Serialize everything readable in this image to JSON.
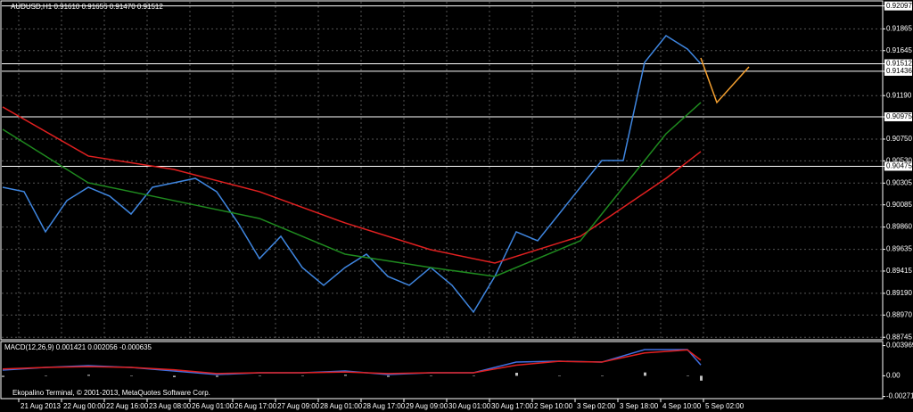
{
  "chart_data": [
    {
      "type": "line",
      "title": "AUDUSD,H1  0.91610 0.91656 0.91470 0.91512",
      "xlim": [
        0,
        329
      ],
      "xticks": [
        {
          "value": 6,
          "label": "21 Aug 2013"
        },
        {
          "value": 22,
          "label": "22 Aug 00:00"
        },
        {
          "value": 38,
          "label": "22 Aug 16:00"
        },
        {
          "value": 54,
          "label": "23 Aug 08:00"
        },
        {
          "value": 70,
          "label": "26 Aug 01:00"
        },
        {
          "value": 86,
          "label": "26 Aug 17:00"
        },
        {
          "value": 102,
          "label": "27 Aug 09:00"
        },
        {
          "value": 118,
          "label": "28 Aug 01:00"
        },
        {
          "value": 134,
          "label": "28 Aug 17:00"
        },
        {
          "value": 150,
          "label": "29 Aug 09:00"
        },
        {
          "value": 166,
          "label": "30 Aug 01:00"
        },
        {
          "value": 182,
          "label": "30 Aug 17:00"
        },
        {
          "value": 198,
          "label": "2 Sep 10:00"
        },
        {
          "value": 214,
          "label": "3 Sep 02:00"
        },
        {
          "value": 230,
          "label": "3 Sep 18:00"
        },
        {
          "value": 246,
          "label": "4 Sep 10:00"
        },
        {
          "value": 262,
          "label": "5 Sep 02:00"
        }
      ],
      "ylim": [
        0.8872,
        0.9213
      ],
      "yticks": [
        0.92097,
        0.91865,
        0.91645,
        0.91512,
        0.91436,
        {
          "value": 0.9119,
          "label": "0.91190"
        },
        0.90975,
        {
          "value": 0.9075,
          "label": "0.90750"
        },
        {
          "value": 0.9053,
          "label": "0.90530"
        },
        0.90475,
        0.90305,
        0.90085,
        {
          "value": 0.8986,
          "label": "0.89860"
        },
        0.89635,
        0.89415,
        {
          "value": 0.8919,
          "label": "0.89190"
        },
        {
          "value": 0.8897,
          "label": "0.88970"
        },
        0.88745
      ],
      "hlines": [
        0.92097,
        0.91512,
        0.91436,
        0.90975,
        0.90475
      ],
      "grid": true,
      "series": [
        {
          "color": "#3f86e0",
          "x": [
            0,
            8,
            16,
            24,
            32,
            40,
            48,
            56,
            64,
            72,
            80,
            88,
            96,
            104,
            112,
            120,
            128,
            136,
            144,
            152,
            160,
            168,
            176,
            184,
            192,
            200,
            208,
            216,
            224,
            232,
            240,
            248,
            256,
            261
          ],
          "values": [
            0.90263,
            0.90218,
            0.89812,
            0.90128,
            0.90263,
            0.90173,
            0.89992,
            0.90263,
            0.90308,
            0.90353,
            0.90218,
            0.89902,
            0.89541,
            0.89767,
            0.89451,
            0.89271,
            0.89451,
            0.89586,
            0.89361,
            0.89271,
            0.89451,
            0.89271,
            0.89,
            0.89361,
            0.89812,
            0.89722,
            0.89992,
            0.90263,
            0.90533,
            0.90533,
            0.91526,
            0.91796,
            0.91661,
            0.91512
          ]
        },
        {
          "color": "#e02020",
          "x": [
            0,
            32,
            64,
            96,
            128,
            160,
            184,
            216,
            248,
            261
          ],
          "values": [
            0.91075,
            0.90579,
            0.90443,
            0.90218,
            0.89902,
            0.89631,
            0.89496,
            0.89767,
            0.90353,
            0.90624
          ]
        },
        {
          "color": "#1f8a1f",
          "x": [
            0,
            32,
            64,
            96,
            128,
            160,
            184,
            216,
            248,
            261
          ],
          "values": [
            0.90849,
            0.90308,
            0.90128,
            0.89947,
            0.89586,
            0.89451,
            0.89361,
            0.89722,
            0.90804,
            0.9112
          ]
        },
        {
          "color": "#f5a030",
          "x": [
            261,
            267,
            279
          ],
          "values": [
            0.91571,
            0.9112,
            0.91481
          ]
        }
      ]
    },
    {
      "type": "line",
      "title": "MACD(12,26,9) 0.001421 0.002056 -0.000635",
      "ylim": [
        -0.003,
        0.0045
      ],
      "yticks": [
        0.003969,
        {
          "value": 0,
          "label": "0.00"
        },
        -0.002718
      ],
      "series": [
        {
          "type": "bar",
          "color": "#c0c0c0",
          "x": [
            0,
            16,
            32,
            48,
            64,
            80,
            96,
            112,
            128,
            144,
            160,
            176,
            192,
            208,
            224,
            240,
            256,
            261
          ],
          "values": [
            -0.00015,
            0,
            0.00013,
            0,
            -0.00017,
            -0.00014,
            0,
            0,
            0.00013,
            -0.00014,
            0,
            0,
            0.0004,
            2e-05,
            0,
            0.00044,
            4e-05,
            -0.000635
          ]
        },
        {
          "color": "#3f6fe0",
          "x": [
            0,
            16,
            32,
            48,
            64,
            80,
            96,
            112,
            128,
            144,
            160,
            176,
            192,
            208,
            224,
            240,
            256,
            261
          ],
          "values": [
            0.00075,
            0.0011,
            0.00133,
            0.0011,
            0.00063,
            0.00016,
            0.0004,
            0.0004,
            0.00063,
            0.00016,
            0.0004,
            0.0004,
            0.0018,
            0.00192,
            0.0018,
            0.00344,
            0.00344,
            0.001421
          ]
        },
        {
          "color": "#e02020",
          "x": [
            0,
            16,
            32,
            48,
            64,
            80,
            96,
            112,
            128,
            144,
            160,
            176,
            192,
            208,
            224,
            240,
            256,
            261
          ],
          "values": [
            0.0009,
            0.0011,
            0.0012,
            0.0011,
            0.0008,
            0.0003,
            0.0004,
            0.0004,
            0.0005,
            0.0003,
            0.0004,
            0.0004,
            0.0014,
            0.0019,
            0.0018,
            0.003,
            0.0034,
            0.002056
          ]
        }
      ]
    }
  ],
  "footer": "Ekopalino Terminal, © 2001-2013, MetaQuotes Software Corp."
}
